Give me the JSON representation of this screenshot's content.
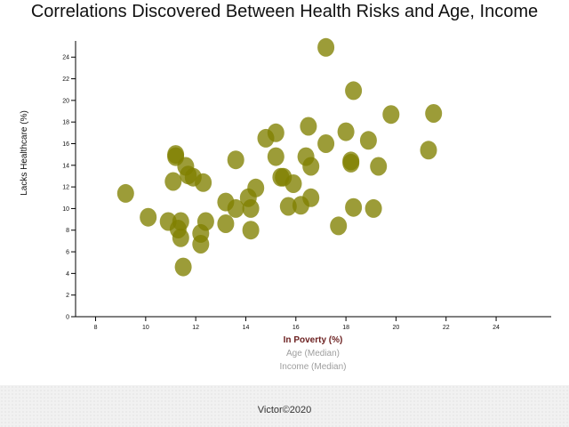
{
  "page": {
    "title": "Correlations Discovered Between Health Risks and Age, Income",
    "footer": "Victor©2020"
  },
  "chart_data": {
    "type": "scatter",
    "title": "Correlations Discovered Between Health Risks and Age, Income",
    "xlabel": "In Poverty (%)",
    "ylabel": "Lacks Healthcare (%)",
    "xlabel_options": [
      "In Poverty (%)",
      "Age (Median)",
      "Income (Median)"
    ],
    "active_xlabel": "In Poverty (%)",
    "xlim": [
      7.2,
      26.2
    ],
    "ylim": [
      0,
      25.5
    ],
    "xticks": [
      8,
      10,
      12,
      14,
      16,
      18,
      20,
      22,
      24
    ],
    "yticks": [
      0,
      2,
      4,
      6,
      8,
      10,
      12,
      14,
      16,
      18,
      20,
      22,
      24
    ],
    "marker_color": "#808000",
    "active_label_color": "#6b1f1f",
    "inactive_label_color": "#9e9e9e",
    "points": [
      {
        "x": 9.2,
        "y": 11.4
      },
      {
        "x": 10.1,
        "y": 9.2
      },
      {
        "x": 10.9,
        "y": 8.8
      },
      {
        "x": 11.1,
        "y": 12.5
      },
      {
        "x": 11.2,
        "y": 15.0
      },
      {
        "x": 11.2,
        "y": 14.8
      },
      {
        "x": 11.3,
        "y": 8.1
      },
      {
        "x": 11.4,
        "y": 8.8
      },
      {
        "x": 11.4,
        "y": 7.3
      },
      {
        "x": 11.5,
        "y": 4.6
      },
      {
        "x": 11.6,
        "y": 13.9
      },
      {
        "x": 11.7,
        "y": 13.1
      },
      {
        "x": 11.9,
        "y": 12.9
      },
      {
        "x": 12.2,
        "y": 6.7
      },
      {
        "x": 12.2,
        "y": 7.7
      },
      {
        "x": 12.3,
        "y": 12.4
      },
      {
        "x": 12.4,
        "y": 8.8
      },
      {
        "x": 13.2,
        "y": 10.6
      },
      {
        "x": 13.2,
        "y": 8.6
      },
      {
        "x": 13.6,
        "y": 10.0
      },
      {
        "x": 13.6,
        "y": 14.5
      },
      {
        "x": 14.1,
        "y": 11.0
      },
      {
        "x": 14.2,
        "y": 10.0
      },
      {
        "x": 14.2,
        "y": 8.0
      },
      {
        "x": 14.4,
        "y": 11.9
      },
      {
        "x": 14.8,
        "y": 16.5
      },
      {
        "x": 15.2,
        "y": 14.8
      },
      {
        "x": 15.2,
        "y": 17.0
      },
      {
        "x": 15.4,
        "y": 12.9
      },
      {
        "x": 15.5,
        "y": 12.9
      },
      {
        "x": 15.7,
        "y": 10.2
      },
      {
        "x": 15.9,
        "y": 12.3
      },
      {
        "x": 16.2,
        "y": 10.3
      },
      {
        "x": 16.4,
        "y": 14.8
      },
      {
        "x": 16.5,
        "y": 17.6
      },
      {
        "x": 16.6,
        "y": 11.0
      },
      {
        "x": 16.6,
        "y": 13.9
      },
      {
        "x": 17.2,
        "y": 24.9
      },
      {
        "x": 17.2,
        "y": 16.0
      },
      {
        "x": 17.7,
        "y": 8.4
      },
      {
        "x": 18.0,
        "y": 17.1
      },
      {
        "x": 18.2,
        "y": 14.4
      },
      {
        "x": 18.2,
        "y": 14.2
      },
      {
        "x": 18.3,
        "y": 10.1
      },
      {
        "x": 18.3,
        "y": 20.9
      },
      {
        "x": 18.9,
        "y": 16.3
      },
      {
        "x": 19.1,
        "y": 10.0
      },
      {
        "x": 19.3,
        "y": 13.9
      },
      {
        "x": 19.8,
        "y": 18.7
      },
      {
        "x": 21.3,
        "y": 15.4
      },
      {
        "x": 21.5,
        "y": 18.8
      }
    ]
  }
}
